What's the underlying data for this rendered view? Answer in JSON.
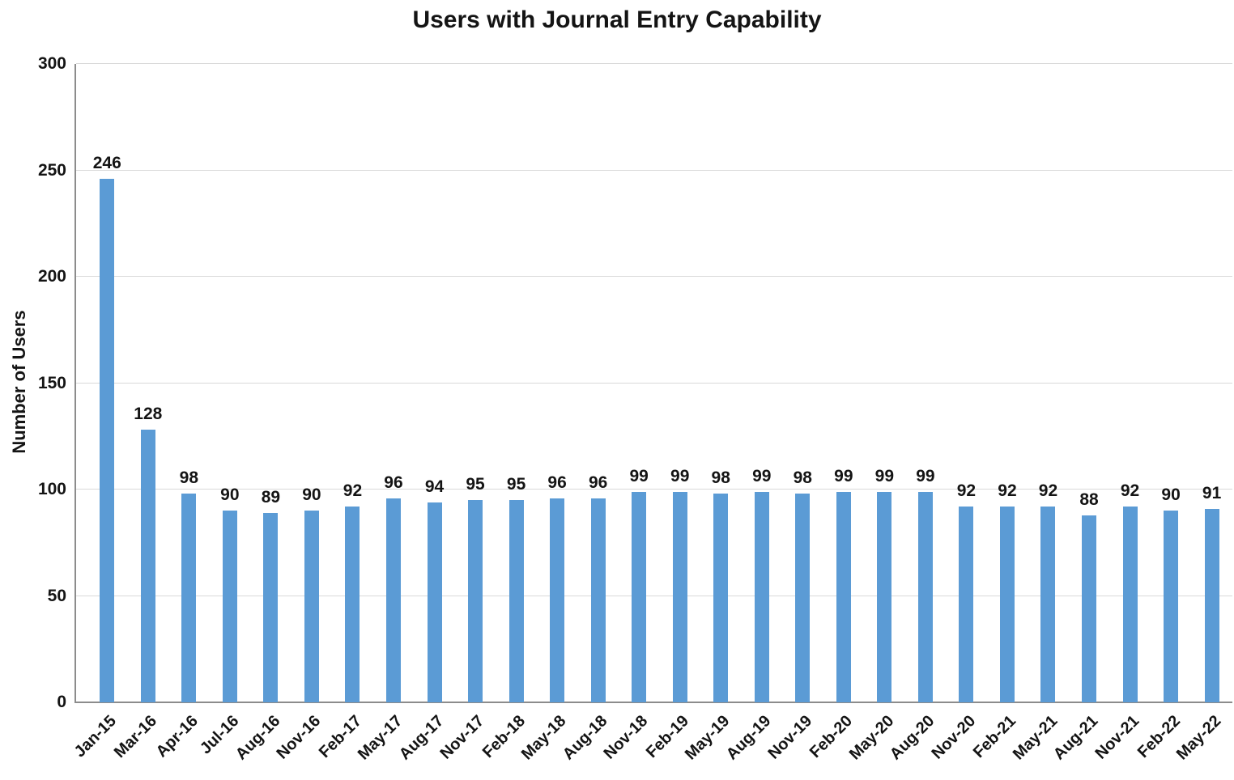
{
  "chart_data": {
    "type": "bar",
    "title": "Users with Journal Entry Capability",
    "xlabel": "",
    "ylabel": "Number of Users",
    "ylim": [
      0,
      300
    ],
    "yticks": [
      0,
      50,
      100,
      150,
      200,
      250,
      300
    ],
    "grid": true,
    "legend": false,
    "bar_color": "#5b9bd5",
    "gridline_color": "#d9d9d9",
    "axis_color": "#8c8c8c",
    "categories": [
      "Jan-15",
      "Mar-16",
      "Apr-16",
      "Jul-16",
      "Aug-16",
      "Nov-16",
      "Feb-17",
      "May-17",
      "Aug-17",
      "Nov-17",
      "Feb-18",
      "May-18",
      "Aug-18",
      "Nov-18",
      "Feb-19",
      "May-19",
      "Aug-19",
      "Nov-19",
      "Feb-20",
      "May-20",
      "Aug-20",
      "Nov-20",
      "Feb-21",
      "May-21",
      "Aug-21",
      "Nov-21",
      "Feb-22",
      "May-22"
    ],
    "values": [
      246,
      128,
      98,
      90,
      89,
      90,
      92,
      96,
      94,
      95,
      95,
      96,
      96,
      99,
      99,
      98,
      99,
      98,
      99,
      99,
      99,
      92,
      92,
      92,
      88,
      92,
      90,
      91
    ],
    "data_labels": true
  }
}
